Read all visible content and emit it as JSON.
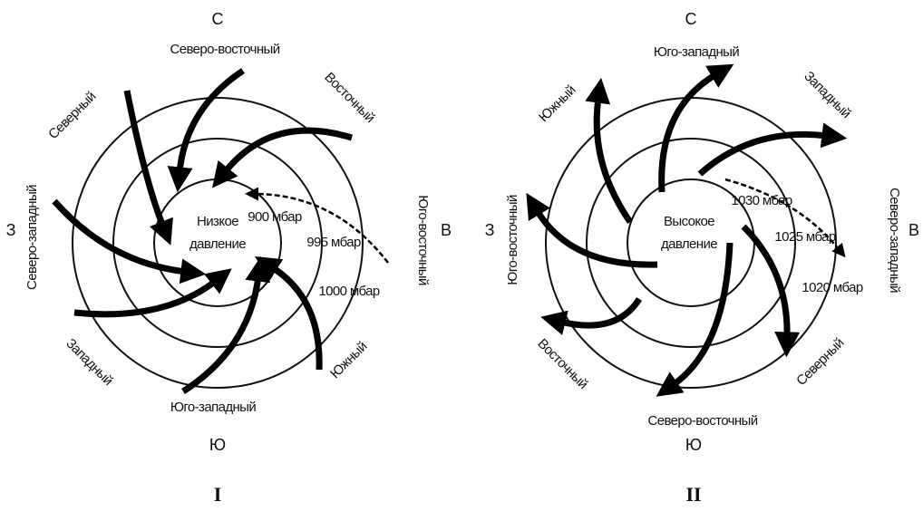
{
  "diagrams": [
    {
      "caption": "I",
      "compass": {
        "n": "С",
        "e": "В",
        "s": "Ю",
        "w": "З"
      },
      "center": [
        "Низкое",
        "давление"
      ],
      "isobars": [
        "900 мбар",
        "995 мбар",
        "1000 мбар"
      ],
      "winds": [
        "Северо-восточный",
        "Восточный",
        "Юго-восточный",
        "Южный",
        "Юго-западный",
        "Западный",
        "Северо-западный",
        "Северный"
      ]
    },
    {
      "caption": "II",
      "compass": {
        "n": "С",
        "e": "В",
        "s": "Ю",
        "w": "З"
      },
      "center": [
        "Высокое",
        "давление"
      ],
      "isobars": [
        "1030 мбар",
        "1025 мбар",
        "1020 мбар"
      ],
      "winds": [
        "Юго-западный",
        "Западный",
        "Северо-западный",
        "Северный",
        "Северо-восточный",
        "Восточный",
        "Юго-восточный",
        "Южный"
      ]
    }
  ]
}
